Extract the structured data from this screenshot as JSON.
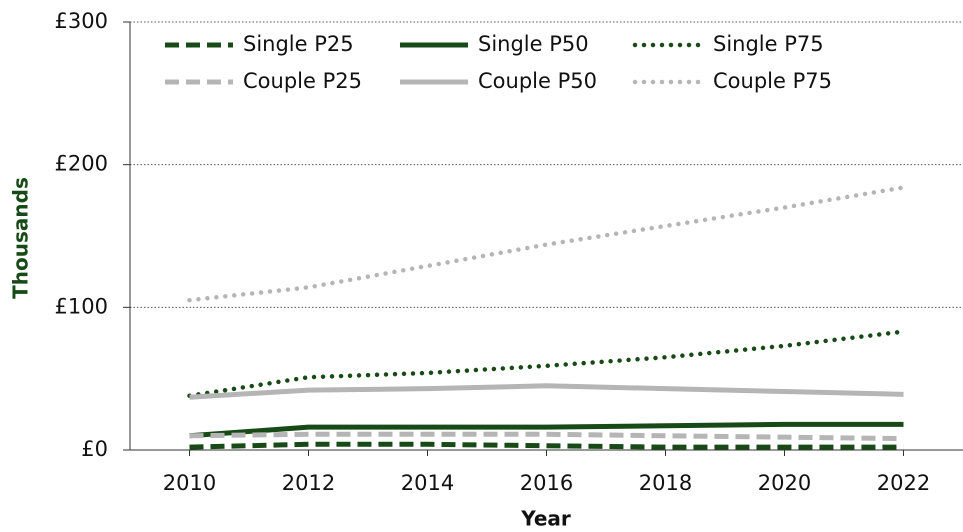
{
  "chart_data": {
    "type": "line",
    "x": [
      2010,
      2012,
      2014,
      2016,
      2018,
      2020,
      2022
    ],
    "xlim": [
      2009,
      2023
    ],
    "xticks": [
      2010,
      2012,
      2014,
      2016,
      2018,
      2020,
      2022
    ],
    "ylim": [
      0,
      300
    ],
    "yticks": [
      {
        "value": 0,
        "label": "£0"
      },
      {
        "value": 100,
        "label": "£100"
      },
      {
        "value": 200,
        "label": "£200"
      },
      {
        "value": 300,
        "label": "£300"
      }
    ],
    "xlabel": "Year",
    "ylabel": "Thousands",
    "grid": true,
    "legend": "top",
    "series": [
      {
        "name": "Single P25",
        "color": "#174a17",
        "style": "dashed",
        "values": [
          2,
          4,
          4,
          3,
          2,
          2,
          2
        ]
      },
      {
        "name": "Single P50",
        "color": "#174a17",
        "style": "solid",
        "values": [
          10,
          16,
          16,
          16,
          17,
          18,
          18
        ]
      },
      {
        "name": "Single P75",
        "color": "#174a17",
        "style": "dotted",
        "values": [
          38,
          51,
          54,
          59,
          65,
          73,
          83
        ]
      },
      {
        "name": "Couple P25",
        "color": "#b5b5b5",
        "style": "dashed",
        "values": [
          10,
          11,
          11,
          11,
          10,
          9,
          8
        ]
      },
      {
        "name": "Couple P50",
        "color": "#b5b5b5",
        "style": "solid",
        "values": [
          37,
          42,
          43,
          45,
          43,
          41,
          39
        ]
      },
      {
        "name": "Couple P75",
        "color": "#b5b5b5",
        "style": "dotted",
        "values": [
          105,
          114,
          129,
          144,
          157,
          170,
          184
        ]
      }
    ]
  }
}
